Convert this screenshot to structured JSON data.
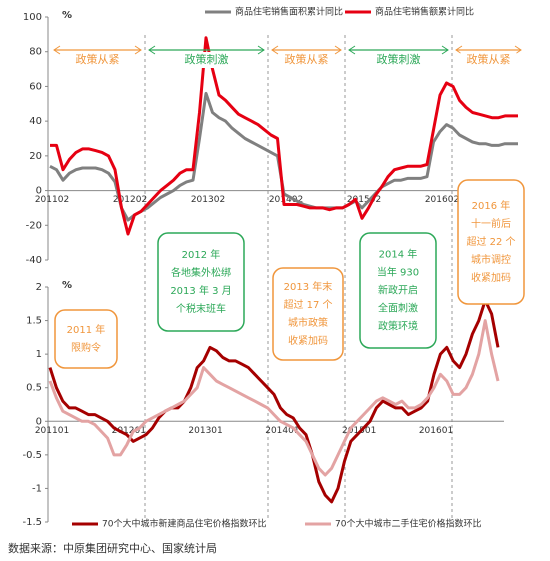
{
  "chart_data": [
    {
      "type": "line",
      "ylabel": "%",
      "categories": [
        "201102",
        null,
        null,
        null,
        null,
        null,
        null,
        null,
        null,
        null,
        null,
        null,
        "201202",
        null,
        null,
        null,
        null,
        null,
        null,
        null,
        null,
        null,
        null,
        null,
        "201302",
        null,
        null,
        null,
        null,
        null,
        null,
        null,
        null,
        null,
        null,
        null,
        "201402",
        null,
        null,
        null,
        null,
        null,
        null,
        null,
        null,
        null,
        null,
        null,
        "201502",
        null,
        null,
        null,
        null,
        null,
        null,
        null,
        null,
        null,
        null,
        null,
        "201602",
        null,
        null,
        null,
        null,
        null,
        null,
        null,
        null,
        null,
        null,
        null,
        null
      ],
      "series": [
        {
          "name": "商品住宅销售面积累计同比",
          "color": "#808080",
          "values": [
            14,
            12,
            6,
            10,
            12,
            13,
            13,
            13,
            12,
            10,
            5,
            -10,
            -17,
            -14,
            -12,
            -10,
            -7,
            -4,
            -2,
            0,
            3,
            5,
            6,
            30,
            56,
            45,
            42,
            40,
            36,
            33,
            30,
            28,
            26,
            24,
            22,
            20,
            -2,
            -4,
            -6,
            -8,
            -9,
            -10,
            -10,
            -10,
            -10,
            -10,
            -8,
            -6,
            -10,
            -6,
            -2,
            2,
            4,
            6,
            6,
            7,
            7,
            7,
            8,
            28,
            34,
            38,
            36,
            32,
            30,
            28,
            27,
            27,
            26,
            26,
            27,
            27,
            27
          ]
        },
        {
          "name": "商品住宅销售额累计同比",
          "color": "#e60012",
          "values": [
            26,
            26,
            12,
            18,
            22,
            24,
            24,
            23,
            22,
            20,
            12,
            -10,
            -25,
            -14,
            -12,
            -8,
            -4,
            0,
            3,
            6,
            10,
            12,
            12,
            45,
            88,
            70,
            55,
            52,
            48,
            44,
            42,
            40,
            38,
            35,
            32,
            30,
            -8,
            -8,
            -8,
            -9,
            -10,
            -10,
            -10,
            -11,
            -10,
            -10,
            -8,
            -5,
            -16,
            -10,
            -3,
            2,
            8,
            12,
            13,
            14,
            14,
            14,
            15,
            35,
            55,
            62,
            60,
            52,
            48,
            45,
            44,
            43,
            42,
            42,
            43,
            43,
            43
          ]
        }
      ],
      "ylim": [
        -40,
        100
      ],
      "yticks": [
        -40,
        -20,
        0,
        20,
        40,
        60,
        80,
        100
      ]
    },
    {
      "type": "line",
      "ylabel": "%",
      "categories": [
        "201101",
        null,
        null,
        null,
        null,
        null,
        null,
        null,
        null,
        null,
        null,
        null,
        "201201",
        null,
        null,
        null,
        null,
        null,
        null,
        null,
        null,
        null,
        null,
        null,
        "201301",
        null,
        null,
        null,
        null,
        null,
        null,
        null,
        null,
        null,
        null,
        null,
        "201401",
        null,
        null,
        null,
        null,
        null,
        null,
        null,
        null,
        null,
        null,
        null,
        "201501",
        null,
        null,
        null,
        null,
        null,
        null,
        null,
        null,
        null,
        null,
        null,
        "201601",
        null,
        null,
        null,
        null,
        null,
        null,
        null,
        null,
        null,
        null
      ],
      "series": [
        {
          "name": "70个大中城市新建商品住宅价格指数环比",
          "color": "#a50000",
          "values": [
            0.8,
            0.5,
            0.3,
            0.2,
            0.2,
            0.15,
            0.1,
            0.1,
            0.05,
            0,
            -0.1,
            -0.15,
            -0.2,
            -0.3,
            -0.25,
            -0.2,
            -0.1,
            0.05,
            0.15,
            0.2,
            0.2,
            0.3,
            0.5,
            0.8,
            0.9,
            1.1,
            1.05,
            0.95,
            0.9,
            0.9,
            0.85,
            0.8,
            0.7,
            0.6,
            0.5,
            0.4,
            0.2,
            0.1,
            0.05,
            -0.1,
            -0.2,
            -0.5,
            -0.9,
            -1.1,
            -1.2,
            -1,
            -0.6,
            -0.3,
            -0.2,
            -0.1,
            0,
            0.2,
            0.3,
            0.25,
            0.2,
            0.2,
            0.1,
            0.15,
            0.2,
            0.3,
            0.7,
            1,
            1.1,
            0.9,
            0.8,
            1,
            1.3,
            1.5,
            1.8,
            1.6,
            1.1
          ]
        },
        {
          "name": "70个大中城市二手住宅价格指数环比",
          "color": "#e3a3a3",
          "values": [
            0.6,
            0.35,
            0.15,
            0.1,
            0.05,
            0,
            0,
            -0.05,
            -0.15,
            -0.25,
            -0.5,
            -0.5,
            -0.35,
            -0.15,
            -0.1,
            0,
            0.05,
            0.1,
            0.15,
            0.2,
            0.25,
            0.3,
            0.4,
            0.5,
            0.8,
            0.7,
            0.6,
            0.55,
            0.5,
            0.45,
            0.4,
            0.35,
            0.3,
            0.25,
            0.2,
            0.1,
            0,
            -0.05,
            -0.1,
            -0.2,
            -0.3,
            -0.5,
            -0.7,
            -0.8,
            -0.7,
            -0.5,
            -0.3,
            -0.1,
            0,
            0.1,
            0.2,
            0.3,
            0.35,
            0.3,
            0.25,
            0.3,
            0.2,
            0.2,
            0.25,
            0.35,
            0.5,
            0.7,
            0.6,
            0.4,
            0.4,
            0.5,
            0.7,
            1,
            1.5,
            1,
            0.6
          ]
        }
      ],
      "ylim": [
        -1.5,
        2
      ],
      "yticks": [
        -1.5,
        -1,
        -0.5,
        0,
        0.5,
        1,
        1.5,
        2
      ]
    }
  ],
  "phases": [
    {
      "label": "政策从紧",
      "color": "#f0963c"
    },
    {
      "label": "政策刺激",
      "color": "#2ca858"
    },
    {
      "label": "政策从紧",
      "color": "#f0963c"
    },
    {
      "label": "政策刺激",
      "color": "#2ca858"
    },
    {
      "label": "政策从紧",
      "color": "#f0963c"
    }
  ],
  "annotations": [
    {
      "lines": [
        "2011 年",
        "限购令"
      ],
      "color": "#f0963c"
    },
    {
      "lines": [
        "2012 年",
        "各地集外松绑",
        "2013 年 3 月",
        "个税末班车"
      ],
      "color": "#2ca858"
    },
    {
      "lines": [
        "2013 年末",
        "超过 17 个",
        "城市政策",
        "收紧加码"
      ],
      "color": "#f0963c"
    },
    {
      "lines": [
        "2014 年",
        "当年 930",
        "新政开启",
        "全面刺激",
        "政策环境"
      ],
      "color": "#2ca858"
    },
    {
      "lines": [
        "2016 年",
        "十一前后",
        "超过 22 个",
        "城市调控",
        "收紧加码"
      ],
      "color": "#f0963c"
    }
  ],
  "source": "数据来源：中原集团研究中心、国家统计局"
}
